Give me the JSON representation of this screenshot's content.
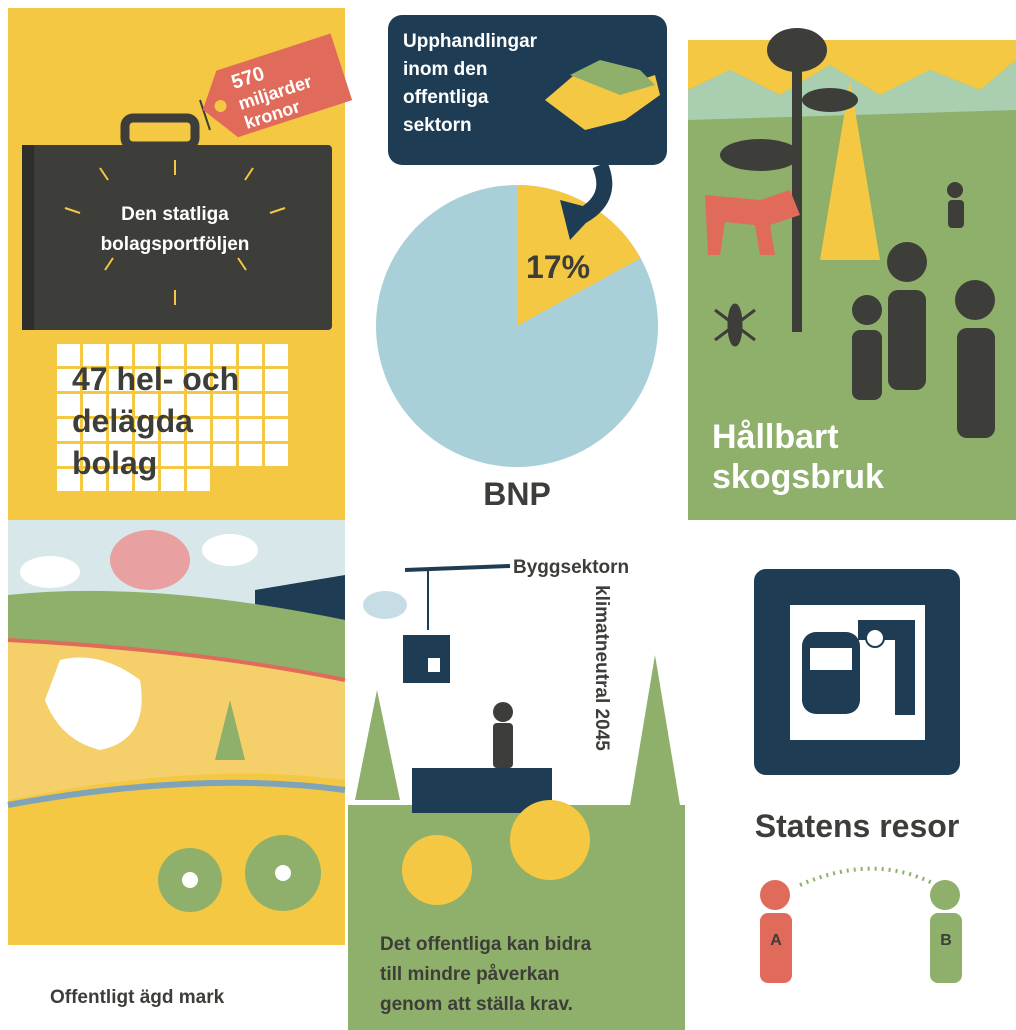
{
  "portfolio": {
    "tag": [
      "570",
      "miljarder",
      "kronor"
    ],
    "title": [
      "Den statliga",
      "bolagsportföljen"
    ],
    "companies": [
      "47 hel- och",
      "delägda",
      "bolag"
    ]
  },
  "procurement": {
    "title": [
      "Upphandlingar",
      "inom den",
      "offentliga",
      "sektorn"
    ]
  },
  "chart_data": {
    "type": "pie",
    "title": "BNP",
    "values": [
      17
    ],
    "value_labels": [
      "17%"
    ],
    "color": "#f4c842",
    "rest_color": "#a9cfd9"
  },
  "forestry": {
    "title": [
      "Hållbart",
      "skogsbruk"
    ]
  },
  "land": {
    "title": "Offentligt ägd mark"
  },
  "construction": {
    "title": "Byggsektorn",
    "subtitle": "klimatneutral 2045",
    "text": [
      "Det offentliga kan bidra",
      "till mindre påverkan",
      "genom att ställa krav."
    ]
  },
  "travel": {
    "title": "Statens resor",
    "from": "A",
    "to": "B"
  }
}
